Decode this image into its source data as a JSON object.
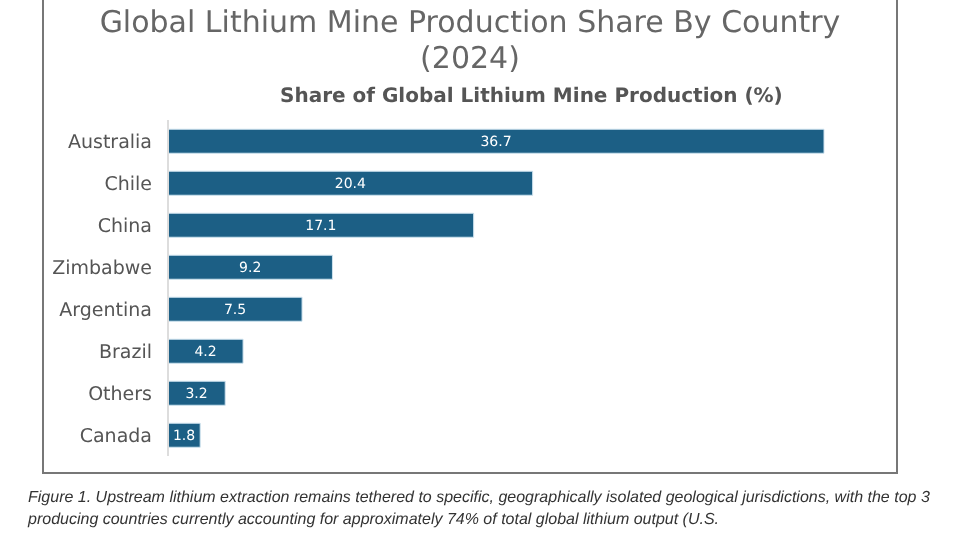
{
  "chart_data": {
    "type": "bar",
    "orientation": "horizontal",
    "title": "Global Lithium Mine Production Share By Country (2024)",
    "subtitle": "Share of Global Lithium Mine Production (%)",
    "categories": [
      "Australia",
      "Chile",
      "China",
      "Zimbabwe",
      "Argentina",
      "Brazil",
      "Others",
      "Canada"
    ],
    "values": [
      36.7,
      20.4,
      17.1,
      9.2,
      7.5,
      4.2,
      3.2,
      1.8
    ],
    "color": "#1c5f85",
    "data_labels": true,
    "annotations": [
      "Figure 1. Upstream lithium extraction remains tethered to specific, geographically isolated geological jurisdictions, with the top 3 producing countries currently accounting for approximately 74% of total global lithium output (U.S."
    ]
  }
}
